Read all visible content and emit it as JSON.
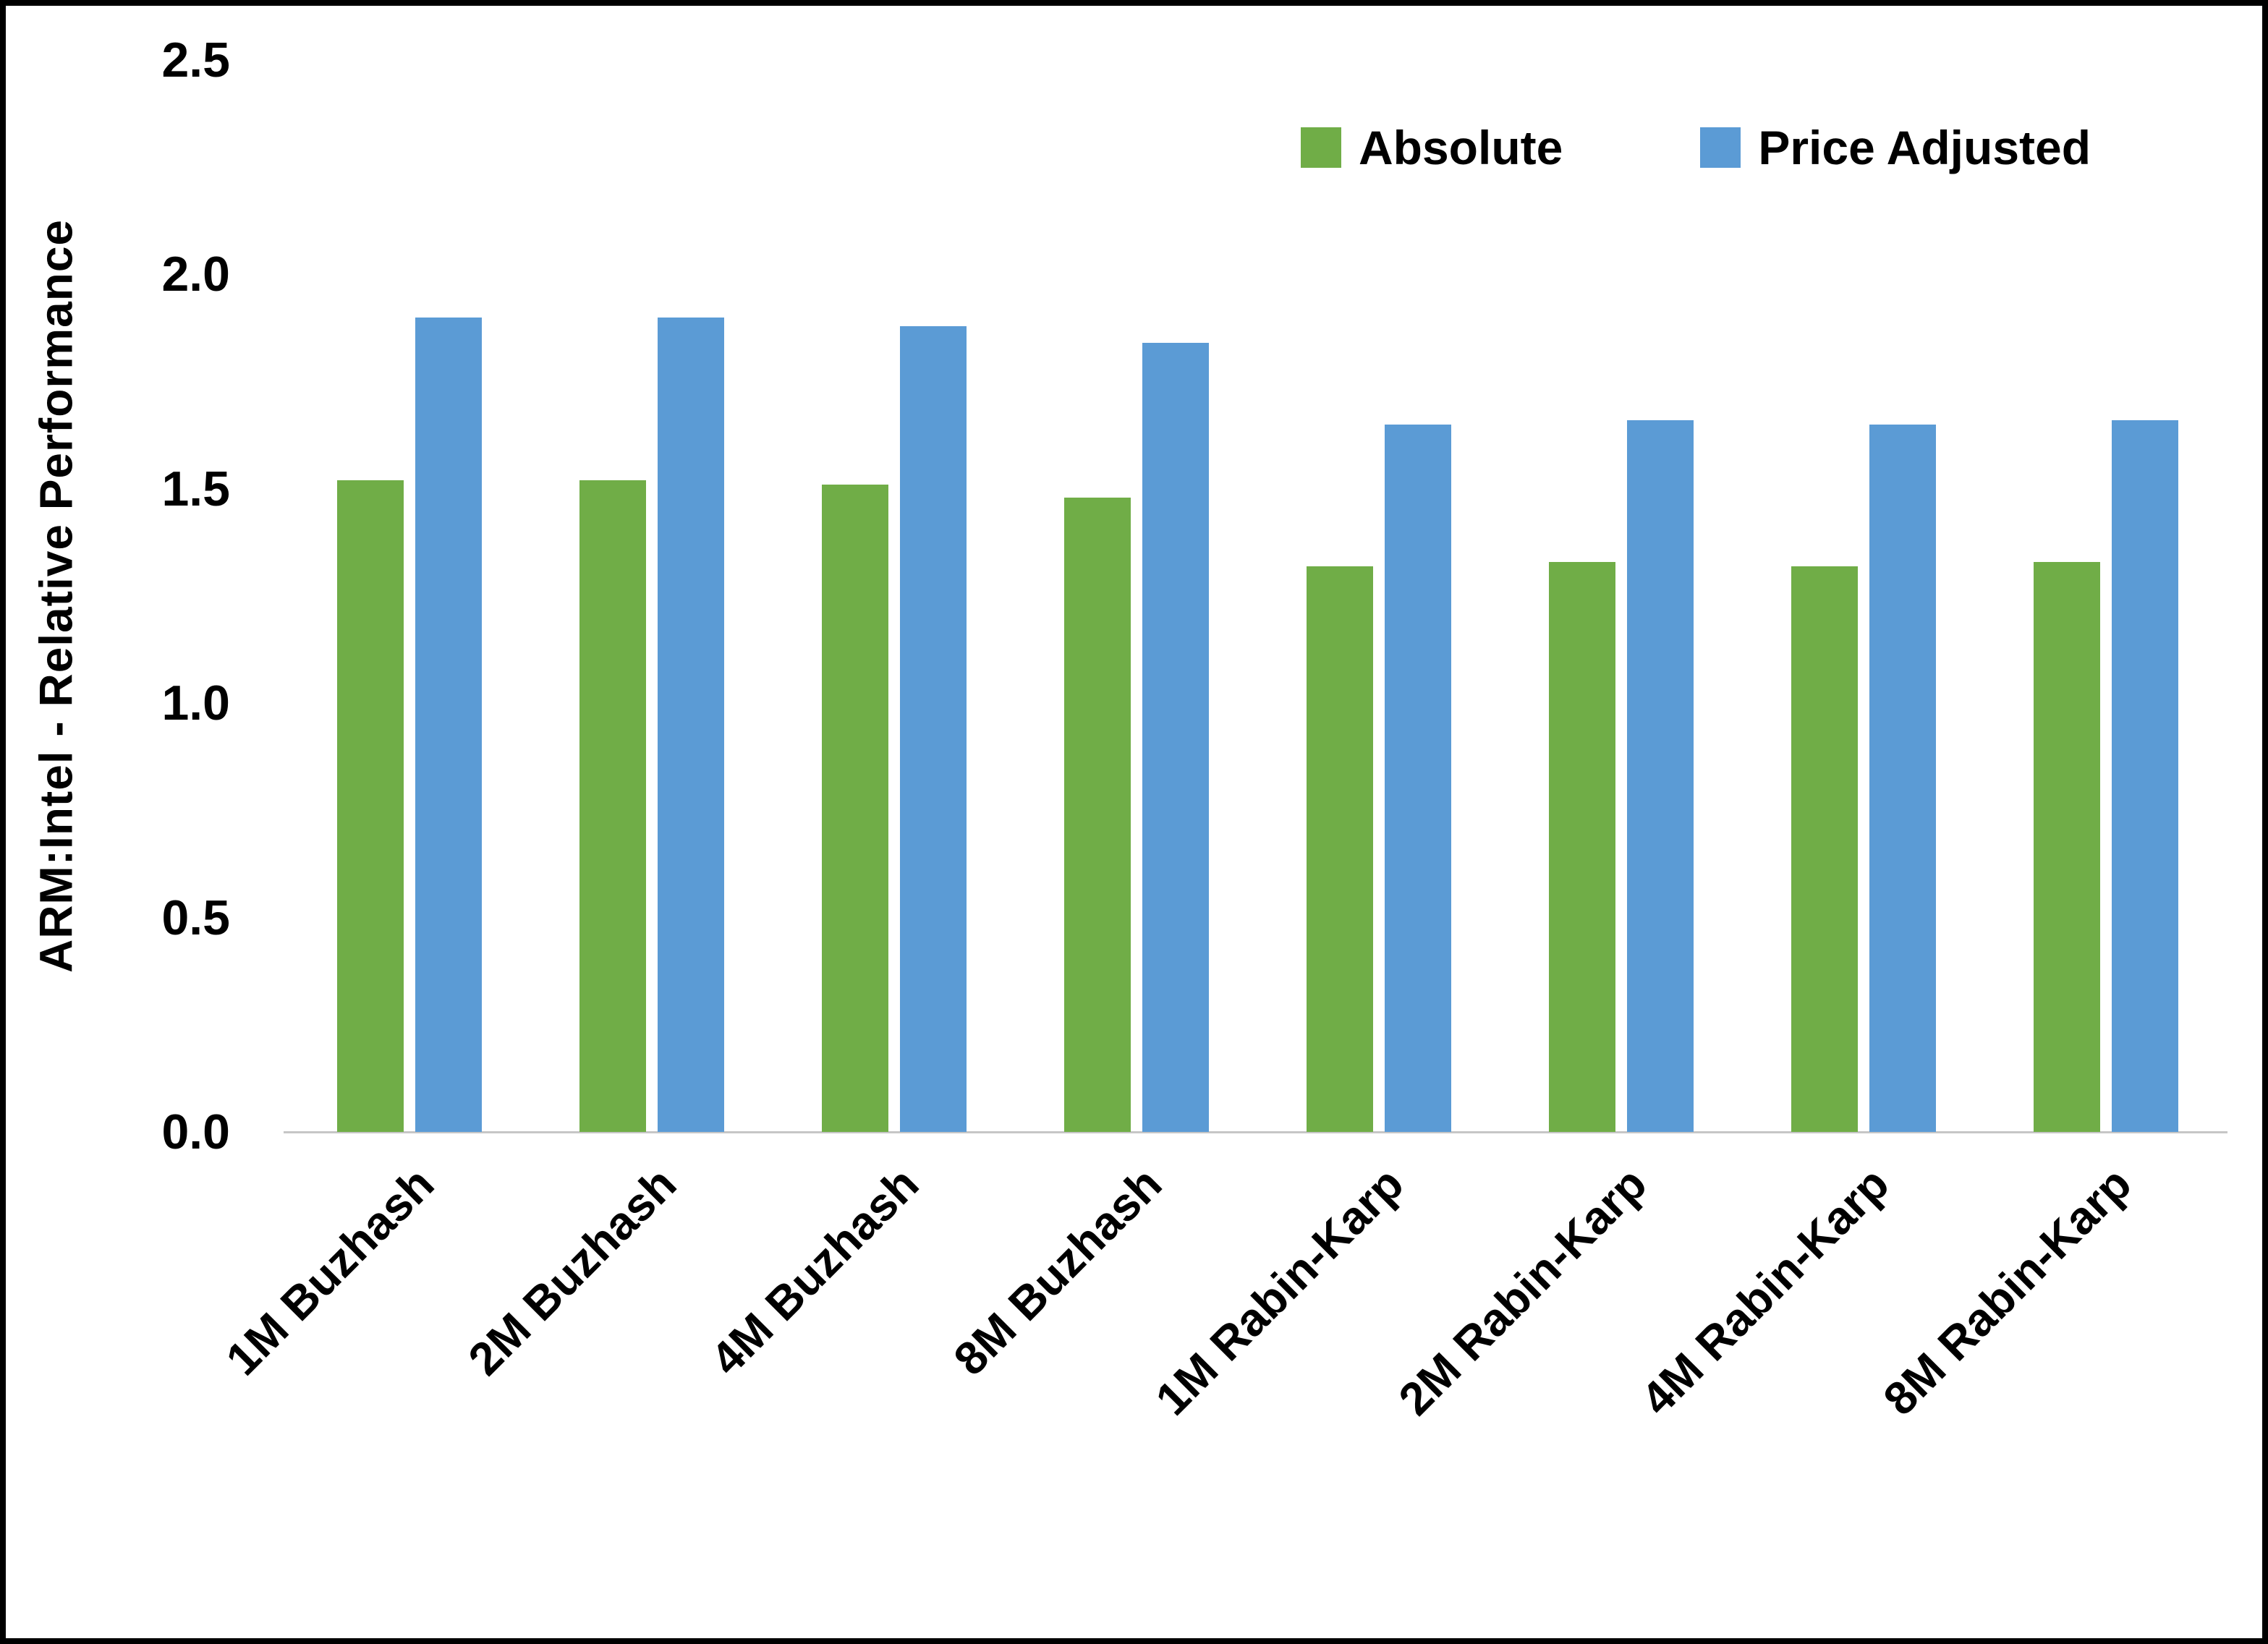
{
  "chart_data": {
    "type": "bar",
    "categories": [
      "1M Buzhash",
      "2M Buzhash",
      "4M Buzhash",
      "8M Buzhash",
      "1M Rabin-Karp",
      "2M Rabin-Karp",
      "4M Rabin-Karp",
      "8M Rabin-Karp"
    ],
    "series": [
      {
        "name": "Absolute",
        "color": "#70AD47",
        "values": [
          1.52,
          1.52,
          1.51,
          1.48,
          1.32,
          1.33,
          1.32,
          1.33
        ]
      },
      {
        "name": "Price Adjusted",
        "color": "#5B9BD5",
        "values": [
          1.9,
          1.9,
          1.88,
          1.84,
          1.65,
          1.66,
          1.65,
          1.66
        ]
      }
    ],
    "title": "",
    "xlabel": "",
    "ylabel": "ARM:Intel - Relative Performance",
    "ylim": [
      0,
      2.5
    ],
    "yticks": [
      "0.0",
      "0.5",
      "1.0",
      "1.5",
      "2.0",
      "2.5"
    ],
    "grid": false,
    "legend_position": "top-right",
    "axis_line_color": "#c6c6c6",
    "frame_color": "#000000"
  }
}
